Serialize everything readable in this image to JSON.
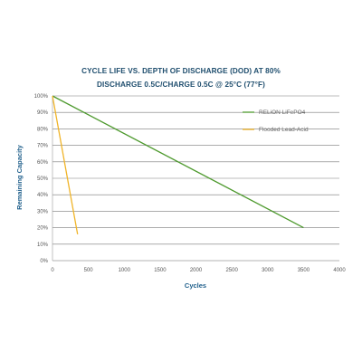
{
  "chart_data": {
    "type": "line",
    "title": "CYCLE LIFE VS. DEPTH OF DISCHARGE (DOD) AT 80%",
    "subtitle": "DISCHARGE 0.5C/CHARGE 0.5C @ 25°C (77°F)",
    "xlabel": "Cycles",
    "ylabel": "Remaining Capacity",
    "xlim": [
      0,
      4000
    ],
    "ylim": [
      0,
      100
    ],
    "x_ticks": [
      "0",
      "500",
      "1000",
      "1500",
      "2000",
      "2500",
      "3000",
      "3500",
      "4000"
    ],
    "y_ticks": [
      "0%",
      "10%",
      "20%",
      "30%",
      "40%",
      "50%",
      "60%",
      "70%",
      "80%",
      "90%",
      "100%"
    ],
    "grid": "horizontal",
    "legend_position": "top-right",
    "series": [
      {
        "name": "RELiON LiFePO4",
        "color": "#4e9a2e",
        "x": [
          0,
          3500
        ],
        "y": [
          100,
          20
        ]
      },
      {
        "name": "Flooded Lead-Acid",
        "color": "#f0b429",
        "x": [
          0,
          350
        ],
        "y": [
          100,
          16
        ]
      }
    ]
  }
}
